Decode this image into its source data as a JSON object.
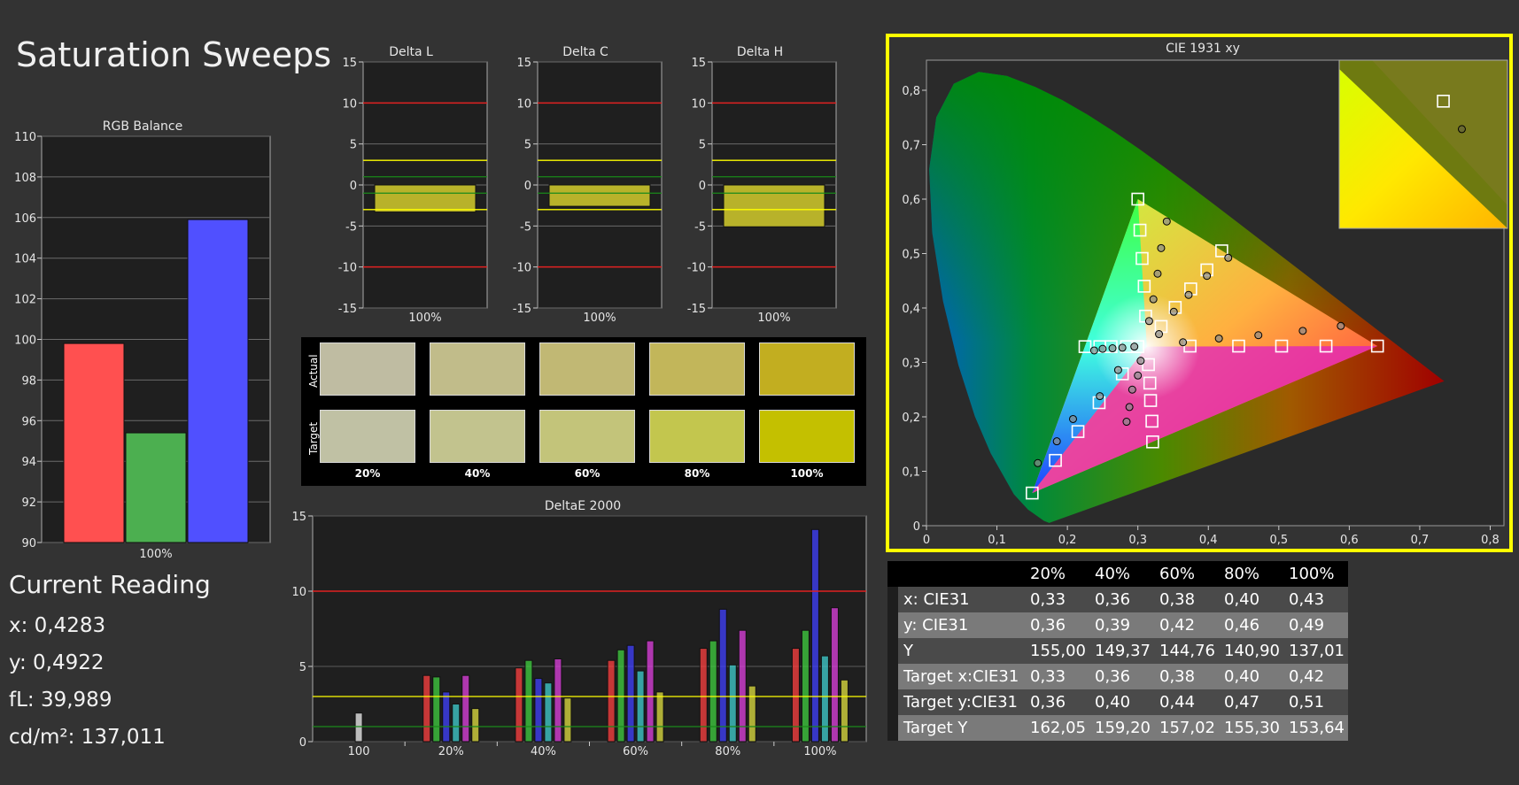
{
  "page": {
    "title": "Saturation Sweeps"
  },
  "reading": {
    "title": "Current Reading",
    "x": "x: 0,4283",
    "y": "y: 0,4922",
    "fl": "fL: 39,989",
    "cdm2": "cd/m²: 137,011"
  },
  "colors": {
    "background": "#333333",
    "red_bar": "#ff5050",
    "green_bar": "#4caf50",
    "blue_bar": "#5050ff",
    "limit_red": "#e02020",
    "limit_yellow": "#ffff00",
    "limit_green": "#1a8a1a",
    "highlight": "#ffff00"
  },
  "chart_data": [
    {
      "id": "rgb",
      "type": "bar",
      "title": "RGB Balance",
      "categories": [
        "100%"
      ],
      "series": [
        {
          "color": "#ff5050",
          "values": [
            99.8
          ]
        },
        {
          "color": "#4caf50",
          "values": [
            95.4
          ]
        },
        {
          "color": "#5050ff",
          "values": [
            105.9
          ]
        }
      ],
      "ylim": [
        90,
        110
      ],
      "yticks": [
        90,
        92,
        94,
        96,
        98,
        100,
        102,
        104,
        106,
        108,
        110
      ],
      "grid": true
    },
    {
      "id": "deltaL",
      "type": "bar",
      "title": "Delta L",
      "categories": [
        "100%"
      ],
      "values": [
        -3.3
      ],
      "ylim": [
        -15,
        15
      ],
      "yticks": [
        15,
        10,
        5,
        0,
        -5,
        -10,
        -15
      ],
      "limits": {
        "red": [
          10,
          -10
        ],
        "yellow": [
          3,
          -3
        ],
        "green": [
          1,
          -1
        ]
      }
    },
    {
      "id": "deltaC",
      "type": "bar",
      "title": "Delta C",
      "categories": [
        "100%"
      ],
      "values": [
        -2.6
      ],
      "ylim": [
        -15,
        15
      ],
      "yticks": [
        15,
        10,
        5,
        0,
        -5,
        -10,
        -15
      ],
      "limits": {
        "red": [
          10,
          -10
        ],
        "yellow": [
          3,
          -3
        ],
        "green": [
          1,
          -1
        ]
      }
    },
    {
      "id": "deltaH",
      "type": "bar",
      "title": "Delta H",
      "categories": [
        "100%"
      ],
      "values": [
        -5.1
      ],
      "ylim": [
        -15,
        15
      ],
      "yticks": [
        15,
        10,
        5,
        0,
        -5,
        -10,
        -15
      ],
      "limits": {
        "red": [
          10,
          -10
        ],
        "yellow": [
          3,
          -3
        ],
        "green": [
          1,
          -1
        ]
      }
    },
    {
      "id": "deltaE",
      "type": "bar",
      "title": "DeltaE 2000",
      "categories": [
        "100",
        "20%",
        "40%",
        "60%",
        "80%",
        "100%"
      ],
      "series": [
        {
          "color": "#ff4040",
          "values": [
            null,
            4.4,
            4.9,
            5.4,
            6.2,
            6.2
          ]
        },
        {
          "color": "#40d040",
          "values": [
            null,
            4.3,
            5.4,
            6.1,
            6.7,
            7.4
          ]
        },
        {
          "color": "#4040ff",
          "values": [
            null,
            3.3,
            4.2,
            6.4,
            8.8,
            14.1
          ]
        },
        {
          "color": "#40d0d0",
          "values": [
            null,
            2.5,
            3.9,
            4.7,
            5.1,
            5.7
          ]
        },
        {
          "color": "#e040e0",
          "values": [
            null,
            4.4,
            5.5,
            6.7,
            7.4,
            8.9
          ]
        },
        {
          "color": "#e0e040",
          "values": [
            null,
            2.2,
            2.9,
            3.3,
            3.7,
            4.1
          ]
        },
        {
          "color": "#f0f0f0",
          "values": [
            1.9,
            null,
            null,
            null,
            null,
            null
          ]
        }
      ],
      "ylim": [
        0,
        15
      ],
      "yticks": [
        0,
        5,
        10,
        15
      ],
      "limits": {
        "red": 10,
        "yellow": 3,
        "green": 1
      }
    },
    {
      "id": "cie",
      "type": "scatter",
      "title": "CIE 1931 xy",
      "xlim": [
        0,
        0.85
      ],
      "ylim": [
        0,
        0.85
      ],
      "xticks": [
        "0",
        "0,1",
        "0,2",
        "0,3",
        "0,4",
        "0,5",
        "0,6",
        "0,7",
        "0,8"
      ],
      "yticks": [
        "0",
        "0,1",
        "0,2",
        "0,3",
        "0,4",
        "0,5",
        "0,6",
        "0,7",
        "0,8"
      ],
      "gamut": {
        "red": [
          0.64,
          0.33
        ],
        "green": [
          0.3,
          0.6
        ],
        "blue": [
          0.15,
          0.06
        ]
      },
      "white": [
        0.3127,
        0.329
      ],
      "targets": [
        [
          0.64,
          0.33
        ],
        [
          0.567,
          0.33
        ],
        [
          0.504,
          0.33
        ],
        [
          0.443,
          0.33
        ],
        [
          0.374,
          0.33
        ],
        [
          0.3,
          0.6
        ],
        [
          0.303,
          0.543
        ],
        [
          0.306,
          0.491
        ],
        [
          0.309,
          0.44
        ],
        [
          0.311,
          0.385
        ],
        [
          0.15,
          0.06
        ],
        [
          0.183,
          0.12
        ],
        [
          0.215,
          0.173
        ],
        [
          0.245,
          0.226
        ],
        [
          0.278,
          0.279
        ],
        [
          0.225,
          0.329
        ],
        [
          0.246,
          0.329
        ],
        [
          0.262,
          0.329
        ],
        [
          0.284,
          0.329
        ],
        [
          0.3,
          0.329
        ],
        [
          0.321,
          0.154
        ],
        [
          0.32,
          0.192
        ],
        [
          0.318,
          0.23
        ],
        [
          0.317,
          0.262
        ],
        [
          0.315,
          0.296
        ],
        [
          0.419,
          0.505
        ],
        [
          0.398,
          0.47
        ],
        [
          0.375,
          0.435
        ],
        [
          0.353,
          0.401
        ],
        [
          0.333,
          0.366
        ]
      ],
      "measured": [
        [
          0.588,
          0.367
        ],
        [
          0.534,
          0.358
        ],
        [
          0.471,
          0.35
        ],
        [
          0.415,
          0.344
        ],
        [
          0.364,
          0.337
        ],
        [
          0.341,
          0.559
        ],
        [
          0.333,
          0.51
        ],
        [
          0.328,
          0.463
        ],
        [
          0.322,
          0.416
        ],
        [
          0.316,
          0.376
        ],
        [
          0.158,
          0.115
        ],
        [
          0.185,
          0.155
        ],
        [
          0.208,
          0.196
        ],
        [
          0.246,
          0.238
        ],
        [
          0.272,
          0.286
        ],
        [
          0.238,
          0.322
        ],
        [
          0.25,
          0.325
        ],
        [
          0.264,
          0.326
        ],
        [
          0.278,
          0.327
        ],
        [
          0.295,
          0.329
        ],
        [
          0.284,
          0.191
        ],
        [
          0.288,
          0.218
        ],
        [
          0.292,
          0.25
        ],
        [
          0.3,
          0.276
        ],
        [
          0.304,
          0.303
        ],
        [
          0.4283,
          0.4922
        ],
        [
          0.398,
          0.459
        ],
        [
          0.372,
          0.424
        ],
        [
          0.351,
          0.393
        ],
        [
          0.33,
          0.352
        ]
      ]
    },
    {
      "id": "cie-inset",
      "type": "scatter",
      "targets": [
        [
          0.4195,
          0.5055
        ]
      ],
      "measured": [
        [
          0.4283,
          0.4922
        ]
      ]
    }
  ],
  "swatches": {
    "row_labels": [
      "Actual",
      "Target"
    ],
    "col_labels": [
      "20%",
      "40%",
      "60%",
      "80%",
      "100%"
    ],
    "actual_colors": [
      "#bfbca2",
      "#c1bc8a",
      "#c1b874",
      "#c2b65a",
      "#c2ae20"
    ],
    "target_colors": [
      "#c0c1a4",
      "#c2c38e",
      "#c3c47a",
      "#c3c64e",
      "#c4c000"
    ]
  },
  "table": {
    "columns": [
      "",
      "20%",
      "40%",
      "60%",
      "80%",
      "100%"
    ],
    "rows": [
      [
        "x: CIE31",
        "0,33",
        "0,36",
        "0,38",
        "0,40",
        "0,43"
      ],
      [
        "y: CIE31",
        "0,36",
        "0,39",
        "0,42",
        "0,46",
        "0,49"
      ],
      [
        "Y",
        "155,00",
        "149,37",
        "144,76",
        "140,90",
        "137,01"
      ],
      [
        "Target x:CIE31",
        "0,33",
        "0,36",
        "0,38",
        "0,40",
        "0,42"
      ],
      [
        "Target y:CIE31",
        "0,36",
        "0,40",
        "0,44",
        "0,47",
        "0,51"
      ],
      [
        "Target Y",
        "162,05",
        "159,20",
        "157,02",
        "155,30",
        "153,64"
      ]
    ]
  }
}
